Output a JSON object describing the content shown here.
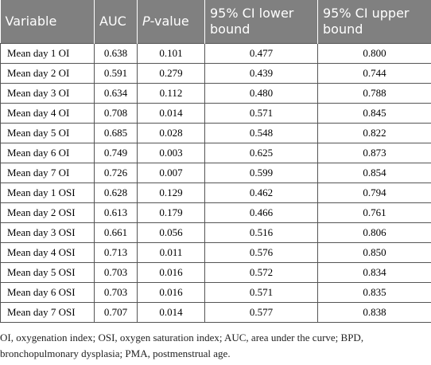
{
  "table": {
    "header": [
      "Variable",
      "AUC",
      {
        "italic": "P",
        "rest": "-value"
      },
      "95% CI lower bound",
      "95% CI upper bound"
    ],
    "rows": [
      [
        "Mean day 1 OI",
        "0.638",
        "0.101",
        "0.477",
        "0.800"
      ],
      [
        "Mean day 2 OI",
        "0.591",
        "0.279",
        "0.439",
        "0.744"
      ],
      [
        "Mean day 3 OI",
        "0.634",
        "0.112",
        "0.480",
        "0.788"
      ],
      [
        "Mean day 4 OI",
        "0.708",
        "0.014",
        "0.571",
        "0.845"
      ],
      [
        "Mean day 5 OI",
        "0.685",
        "0.028",
        "0.548",
        "0.822"
      ],
      [
        "Mean day 6 OI",
        "0.749",
        "0.003",
        "0.625",
        "0.873"
      ],
      [
        "Mean day 7 OI",
        "0.726",
        "0.007",
        "0.599",
        "0.854"
      ],
      [
        "Mean day 1 OSI",
        "0.628",
        "0.129",
        "0.462",
        "0.794"
      ],
      [
        "Mean day 2 OSI",
        "0.613",
        "0.179",
        "0.466",
        "0.761"
      ],
      [
        "Mean day 3 OSI",
        "0.661",
        "0.056",
        "0.516",
        "0.806"
      ],
      [
        "Mean day 4 OSI",
        "0.713",
        "0.011",
        "0.576",
        "0.850"
      ],
      [
        "Mean day 5 OSI",
        "0.703",
        "0.016",
        "0.572",
        "0.834"
      ],
      [
        "Mean day 6 OSI",
        "0.703",
        "0.016",
        "0.571",
        "0.835"
      ],
      [
        "Mean day 7 OSI",
        "0.707",
        "0.014",
        "0.577",
        "0.838"
      ]
    ]
  },
  "footnote": "OI, oxygenation index; OSI, oxygen saturation index; AUC, area under the curve; BPD, bronchopulmonary dysplasia; PMA, postmenstrual age."
}
